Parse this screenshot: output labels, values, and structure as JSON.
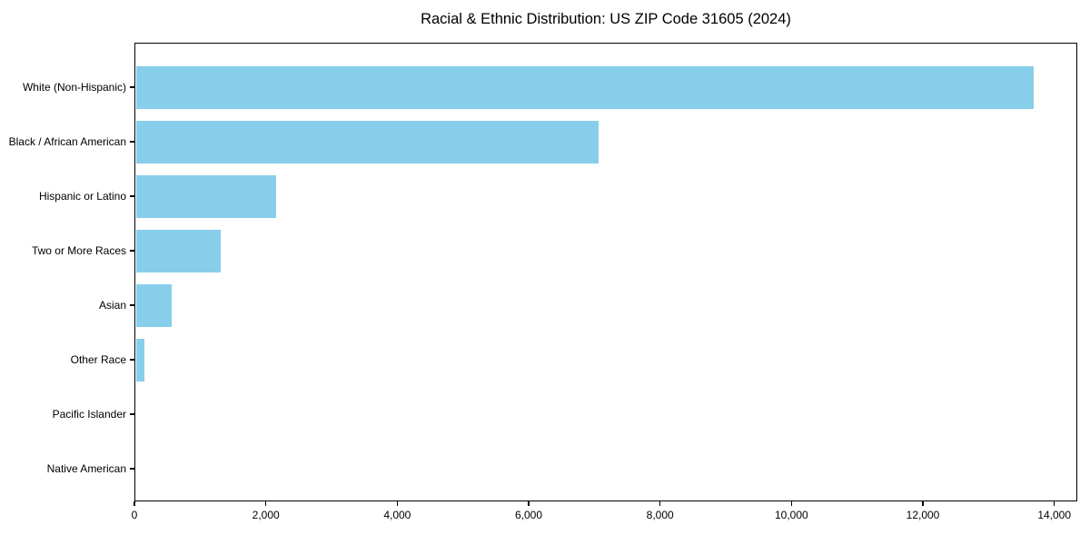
{
  "chart_data": {
    "type": "bar",
    "orientation": "horizontal",
    "title": "Racial & Ethnic Distribution: US ZIP Code 31605 (2024)",
    "categories": [
      "White (Non-Hispanic)",
      "Black / African American",
      "Hispanic or Latino",
      "Two or More Races",
      "Asian",
      "Other Race",
      "Pacific Islander",
      "Native American"
    ],
    "values": [
      13660,
      7050,
      2140,
      1290,
      540,
      125,
      0,
      0
    ],
    "xlabel": "",
    "ylabel": "",
    "x_ticks": [
      0,
      2000,
      4000,
      6000,
      8000,
      10000,
      12000,
      14000
    ],
    "x_tick_labels": [
      "0",
      "2,000",
      "4,000",
      "6,000",
      "8,000",
      "10,000",
      "12,000",
      "14,000"
    ],
    "xlim": [
      0,
      14350
    ],
    "bar_color": "#87CEEB",
    "axis_color": "#000000",
    "background_color": "#ffffff",
    "grid": false,
    "legend": null
  }
}
